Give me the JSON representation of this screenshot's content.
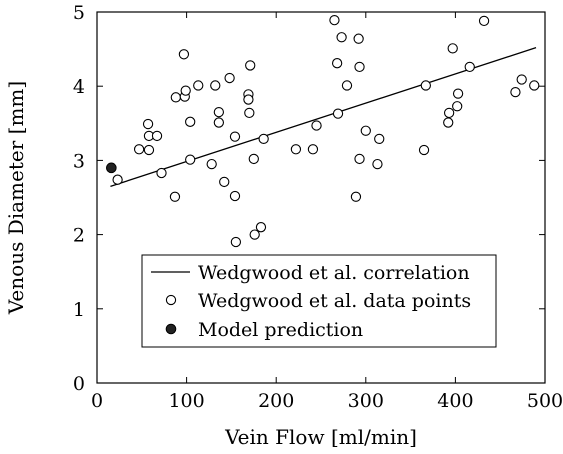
{
  "chart_data": {
    "type": "scatter",
    "xlabel": "Vein Flow [ml/min]",
    "ylabel": "Venous Diameter [mm]",
    "xlim": [
      0,
      500
    ],
    "ylim": [
      0,
      5
    ],
    "xticks": [
      0,
      100,
      200,
      300,
      400,
      500
    ],
    "yticks": [
      0,
      1,
      2,
      3,
      4,
      5
    ],
    "grid": false,
    "legend_position": "bottom-center",
    "series": [
      {
        "name": "Wedgwood et al. correlation",
        "kind": "line",
        "points": [
          [
            15,
            2.65
          ],
          [
            490,
            4.52
          ]
        ]
      },
      {
        "name": "Wedgwood et al. data points",
        "kind": "scatter-open",
        "points": [
          [
            23,
            2.74
          ],
          [
            47,
            3.15
          ],
          [
            57,
            3.49
          ],
          [
            58,
            3.33
          ],
          [
            58,
            3.14
          ],
          [
            67,
            3.33
          ],
          [
            72,
            2.83
          ],
          [
            87,
            2.51
          ],
          [
            88,
            3.85
          ],
          [
            97,
            4.43
          ],
          [
            98,
            3.86
          ],
          [
            99,
            3.94
          ],
          [
            104,
            3.52
          ],
          [
            104,
            3.01
          ],
          [
            113,
            4.01
          ],
          [
            128,
            2.95
          ],
          [
            132,
            4.01
          ],
          [
            136,
            3.65
          ],
          [
            136,
            3.51
          ],
          [
            142,
            2.71
          ],
          [
            148,
            4.11
          ],
          [
            154,
            3.32
          ],
          [
            154,
            2.52
          ],
          [
            155,
            1.9
          ],
          [
            169,
            3.89
          ],
          [
            169,
            3.82
          ],
          [
            170,
            3.64
          ],
          [
            171,
            4.28
          ],
          [
            175,
            3.02
          ],
          [
            176,
            2.0
          ],
          [
            183,
            2.1
          ],
          [
            186,
            3.29
          ],
          [
            222,
            3.15
          ],
          [
            241,
            3.15
          ],
          [
            245,
            3.47
          ],
          [
            265,
            4.89
          ],
          [
            268,
            4.31
          ],
          [
            269,
            3.63
          ],
          [
            273,
            4.66
          ],
          [
            279,
            4.01
          ],
          [
            289,
            2.51
          ],
          [
            292,
            4.64
          ],
          [
            293,
            4.26
          ],
          [
            293,
            3.02
          ],
          [
            300,
            3.4
          ],
          [
            313,
            2.95
          ],
          [
            315,
            3.29
          ],
          [
            365,
            3.14
          ],
          [
            367,
            4.01
          ],
          [
            392,
            3.51
          ],
          [
            393,
            3.64
          ],
          [
            397,
            4.51
          ],
          [
            402,
            3.73
          ],
          [
            403,
            3.9
          ],
          [
            416,
            4.26
          ],
          [
            432,
            4.88
          ],
          [
            467,
            3.92
          ],
          [
            474,
            4.09
          ],
          [
            488,
            4.01
          ]
        ]
      },
      {
        "name": "Model prediction",
        "kind": "scatter-filled",
        "points": [
          [
            16,
            2.9
          ]
        ]
      }
    ]
  }
}
